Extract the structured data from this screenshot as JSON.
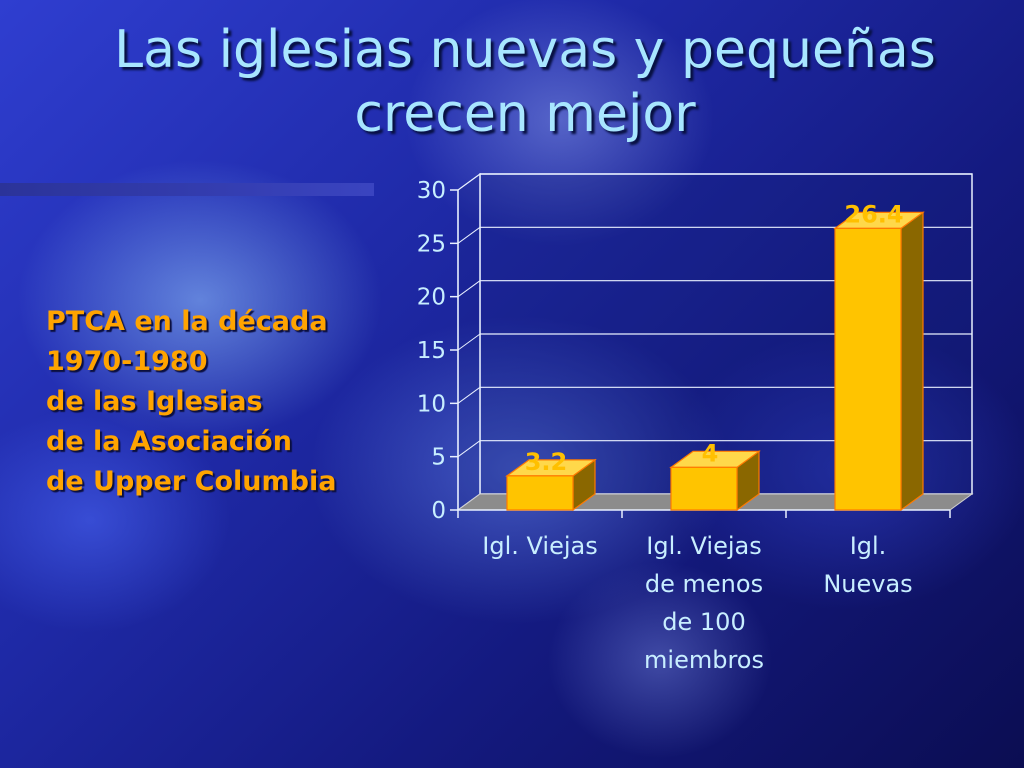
{
  "title_lines": [
    "Las iglesias nuevas y pequeñas",
    "crecen mejor"
  ],
  "caption_lines": [
    "PTCA en la década",
    "1970-1980",
    "de las Iglesias",
    "de la Asociación",
    "de Upper Columbia"
  ],
  "colors": {
    "title": "#a8e6ff",
    "caption": "#ffa400",
    "bar_front": "#ffc400",
    "bar_side": "#8a6700",
    "bar_top": "#ffd84a",
    "axis_text": "#c8eeff",
    "data_label": "#ffc000"
  },
  "chart_data": {
    "type": "bar",
    "categories": [
      [
        "Igl. Viejas"
      ],
      [
        "Igl. Viejas",
        "de menos",
        "de 100",
        "miembros"
      ],
      [
        "Igl.",
        "Nuevas"
      ]
    ],
    "values": [
      3.2,
      4,
      26.4
    ],
    "data_labels": [
      "3.2",
      "4",
      "26.4"
    ],
    "yticks": [
      0,
      5,
      10,
      15,
      20,
      25,
      30
    ],
    "ylim": [
      0,
      30
    ],
    "grid": true,
    "style": "3d"
  }
}
